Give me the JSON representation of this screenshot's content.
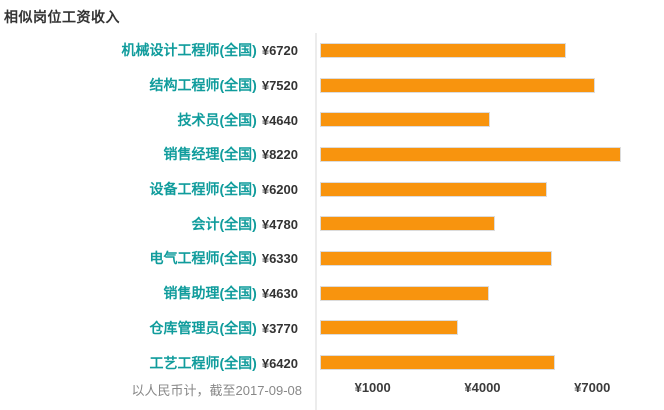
{
  "page": {
    "title": "相似岗位工资收入"
  },
  "chart_data": {
    "type": "bar",
    "orientation": "horizontal",
    "title": "相似岗位工资收入",
    "categories": [
      "机械设计工程师(全国)",
      "结构工程师(全国)",
      "技术员(全国)",
      "销售经理(全国)",
      "设备工程师(全国)",
      "会计(全国)",
      "电气工程师(全国)",
      "销售助理(全国)",
      "仓库管理员(全国)",
      "工艺工程师(全国)"
    ],
    "values": [
      6720,
      7520,
      4640,
      8220,
      6200,
      4780,
      6330,
      4630,
      3770,
      6420
    ],
    "value_labels": [
      "¥6720",
      "¥7520",
      "¥4640",
      "¥8220",
      "¥6200",
      "¥4780",
      "¥6330",
      "¥4630",
      "¥3770",
      "¥6420"
    ],
    "x_ticks": [
      {
        "label": "¥1000",
        "value": 1000
      },
      {
        "label": "¥4000",
        "value": 4000
      },
      {
        "label": "¥7000",
        "value": 7000
      }
    ],
    "xlim": [
      0,
      9400
    ],
    "grid": "off",
    "legend": "none",
    "footnote": "以人民币计，截至2017-09-08",
    "currency_prefix": "¥",
    "colors": {
      "bar": "#f8940e",
      "bar_border": "#dcdcdc",
      "category_text": "#109c9c",
      "value_text": "#333333",
      "title_text": "#333333",
      "axis_line": "#ececec",
      "tick_text": "#3b3b3b",
      "footnote_text": "#888888",
      "background": "#ffffff"
    }
  }
}
